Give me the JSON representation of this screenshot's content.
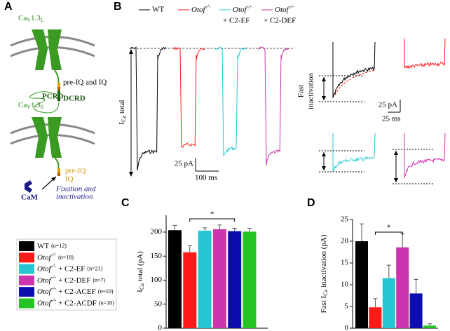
{
  "panels": {
    "a": "A",
    "b": "B",
    "c": "C",
    "d": "D"
  },
  "panel_a": {
    "channel_long": {
      "name": "Ca",
      "sub1": "V",
      "num": "1.3",
      "sub2": "L"
    },
    "long_labels": {
      "motif": "pre-IQ and IQ",
      "pcrd": "PCRD",
      "dcrd": "DCRD"
    },
    "channel_short": {
      "name": "Ca",
      "sub1": "V",
      "num": "1.3",
      "sub2": "S"
    },
    "short_labels": {
      "pre_iq": "pre-IQ",
      "iq": "IQ",
      "cam": "CaM",
      "note": [
        "Fixation and",
        "inactivation"
      ]
    }
  },
  "panel_b": {
    "legend": [
      {
        "name": "WT"
      },
      {
        "gene": "Otof",
        "genotype": "-/-"
      },
      {
        "gene": "Otof",
        "genotype": "-/-",
        "suffix": "+ C2-EF"
      },
      {
        "gene": "Otof",
        "genotype": "-/-",
        "suffix": "+ C2-DEF"
      }
    ],
    "ylabel": {
      "main": "I",
      "sub": "Ca",
      "rest": "total"
    },
    "scale_left": {
      "y": "25 pA",
      "x": "100 ms"
    },
    "inset_label": [
      "Fast",
      "inactivation"
    ],
    "scale_right": {
      "y": "25 pA",
      "x": "25 ms"
    }
  },
  "legend": [
    {
      "label": "WT",
      "n": "(n=12)",
      "color": "#000000"
    },
    {
      "gene": "Otof",
      "genotype": "-/-",
      "n": "(n=18)",
      "color": "#ff1a1a"
    },
    {
      "gene": "Otof",
      "genotype": "-/-",
      "suffix": "+ C2-EF",
      "n": "(n=21)",
      "color": "#25c6d2"
    },
    {
      "gene": "Otof",
      "genotype": "-/-",
      "suffix": "+ C2-DEF",
      "n": "(n=7)",
      "color": "#cc35ad"
    },
    {
      "gene": "Otof",
      "genotype": "-/-",
      "suffix": "+ C2-ACEF",
      "n": "(n=10)",
      "color": "#0c0caf"
    },
    {
      "gene": "Otof",
      "genotype": "-/-",
      "suffix": "+ C2-ACDF",
      "n": "(n=10)",
      "color": "#25c425"
    }
  ],
  "chart_data": [
    {
      "type": "bar",
      "ylabel": {
        "main": "I",
        "sub": "Ca",
        "rest": "total (pA)"
      },
      "categories": [
        null,
        null,
        null,
        null,
        null,
        null
      ],
      "values": [
        204,
        158,
        203,
        206,
        202,
        201
      ],
      "errors": [
        10,
        14,
        6,
        9,
        6,
        7
      ],
      "colors": [
        "#000000",
        "#ff1a1a",
        "#25c6d2",
        "#cc35ad",
        "#0c0caf",
        "#25c425"
      ],
      "ylim": [
        0,
        235
      ],
      "yticks": [
        0,
        50,
        100,
        150,
        200
      ],
      "significance": "*"
    },
    {
      "type": "bar",
      "ylabel": {
        "pre": "Fast I",
        "sub": "Ca",
        "rest": "inactivation (pA)"
      },
      "categories": [
        null,
        null,
        null,
        null,
        null,
        null
      ],
      "values": [
        20,
        4.8,
        11.5,
        18.6,
        8,
        0.6
      ],
      "errors": [
        4,
        2,
        3,
        3.2,
        3.2,
        0.4
      ],
      "colors": [
        "#000000",
        "#ff1a1a",
        "#25c6d2",
        "#cc35ad",
        "#0c0caf",
        "#25c425"
      ],
      "ylim": [
        0,
        25
      ],
      "yticks": [
        0,
        5,
        10,
        15,
        20,
        25
      ],
      "significance": "*"
    }
  ]
}
